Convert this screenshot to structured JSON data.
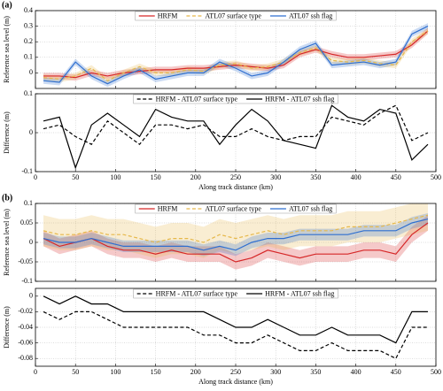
{
  "chart_data": [
    {
      "type": "line",
      "panel_label": "(a)",
      "ylabel": "Reference sea level (m)",
      "x": [
        10,
        30,
        50,
        70,
        90,
        110,
        130,
        150,
        170,
        190,
        210,
        230,
        250,
        270,
        290,
        310,
        330,
        350,
        370,
        390,
        410,
        430,
        450,
        470,
        490
      ],
      "xlim": [
        0,
        500
      ],
      "xticks": [
        0,
        50,
        100,
        150,
        200,
        250,
        300,
        350,
        400,
        450,
        500
      ],
      "ylim": [
        -0.1,
        0.4
      ],
      "yticks": [
        0,
        0.1,
        0.2,
        0.3,
        0.4
      ],
      "grid": true,
      "legend": "top",
      "series": [
        {
          "name": "HRFM",
          "color": "#d62728",
          "dash": "solid",
          "band": 0.02,
          "values": [
            -0.02,
            -0.02,
            -0.03,
            0.0,
            -0.02,
            0.0,
            0.01,
            0.02,
            0.02,
            0.03,
            0.03,
            0.04,
            0.05,
            0.04,
            0.03,
            0.05,
            0.12,
            0.15,
            0.12,
            0.1,
            0.1,
            0.11,
            0.12,
            0.18,
            0.27
          ]
        },
        {
          "name": "ATL07 surface type",
          "color": "#e6b84a",
          "dash": "dashed",
          "band": 0.02,
          "values": [
            -0.03,
            -0.04,
            -0.02,
            0.03,
            -0.05,
            0.0,
            0.04,
            0.0,
            0.0,
            0.02,
            0.01,
            0.05,
            0.06,
            0.03,
            0.04,
            0.07,
            0.13,
            0.16,
            0.08,
            0.07,
            0.08,
            0.06,
            0.05,
            0.2,
            0.27
          ]
        },
        {
          "name": "ATL07 ssh flag",
          "color": "#2f6fd0",
          "dash": "solid",
          "band": 0.02,
          "values": [
            -0.05,
            -0.06,
            0.07,
            -0.02,
            -0.07,
            -0.02,
            0.02,
            -0.04,
            -0.02,
            0.0,
            0.0,
            0.07,
            0.03,
            -0.02,
            0.0,
            0.07,
            0.15,
            0.19,
            0.05,
            0.06,
            0.07,
            0.05,
            0.07,
            0.25,
            0.3
          ]
        }
      ]
    },
    {
      "type": "line",
      "ylabel": "Difference (m)",
      "xlabel": "Along track distance (km)",
      "x": [
        10,
        30,
        50,
        70,
        90,
        110,
        130,
        150,
        170,
        190,
        210,
        230,
        250,
        270,
        290,
        310,
        330,
        350,
        370,
        390,
        410,
        430,
        450,
        470,
        490
      ],
      "xlim": [
        0,
        500
      ],
      "xticks": [
        0,
        50,
        100,
        150,
        200,
        250,
        300,
        350,
        400,
        450,
        500
      ],
      "ylim": [
        -0.1,
        0.1
      ],
      "yticks": [
        -0.1,
        0,
        0.1
      ],
      "grid": true,
      "legend": "top",
      "series": [
        {
          "name": "HRFM - ATL07 surface type",
          "color": "#000000",
          "dash": "dashed",
          "values": [
            0.01,
            0.02,
            -0.01,
            -0.03,
            0.03,
            0.0,
            -0.03,
            0.02,
            0.02,
            0.01,
            0.02,
            -0.01,
            -0.01,
            0.01,
            -0.01,
            -0.02,
            -0.01,
            -0.01,
            0.04,
            0.03,
            0.02,
            0.05,
            0.07,
            -0.02,
            0.0
          ]
        },
        {
          "name": "HRFM - ATL07 ssh flag",
          "color": "#000000",
          "dash": "solid",
          "values": [
            0.03,
            0.04,
            -0.09,
            0.02,
            0.05,
            0.02,
            -0.01,
            0.06,
            0.04,
            0.03,
            0.03,
            -0.03,
            0.02,
            0.06,
            0.03,
            -0.02,
            -0.03,
            -0.04,
            0.07,
            0.04,
            0.03,
            0.06,
            0.05,
            -0.07,
            -0.03
          ]
        }
      ]
    },
    {
      "type": "line",
      "panel_label": "(b)",
      "ylabel": "Reference sea level (m)",
      "x": [
        10,
        30,
        50,
        70,
        90,
        110,
        130,
        150,
        170,
        190,
        210,
        230,
        250,
        270,
        290,
        310,
        330,
        350,
        370,
        390,
        410,
        430,
        450,
        470,
        490
      ],
      "xlim": [
        0,
        500
      ],
      "xticks": [
        0,
        50,
        100,
        150,
        200,
        250,
        300,
        350,
        400,
        450,
        500
      ],
      "ylim": [
        -0.1,
        0.1
      ],
      "yticks": [
        -0.1,
        -0.05,
        0,
        0.05,
        0.1
      ],
      "grid": true,
      "legend": "top",
      "series": [
        {
          "name": "HRFM",
          "color": "#d62728",
          "dash": "solid",
          "band": 0.02,
          "values": [
            0.01,
            -0.01,
            0.0,
            0.01,
            -0.01,
            -0.02,
            -0.02,
            -0.03,
            -0.02,
            -0.03,
            -0.03,
            -0.03,
            -0.05,
            -0.04,
            -0.02,
            -0.03,
            -0.04,
            -0.03,
            -0.03,
            -0.03,
            -0.02,
            -0.02,
            -0.03,
            0.02,
            0.05
          ]
        },
        {
          "name": "ATL07 surface type",
          "color": "#e6b84a",
          "dash": "dashed",
          "band": 0.04,
          "values": [
            0.03,
            0.02,
            0.02,
            0.03,
            0.02,
            0.02,
            0.01,
            0.0,
            0.01,
            0.01,
            0.0,
            0.02,
            0.01,
            0.02,
            0.03,
            0.02,
            0.03,
            0.03,
            0.03,
            0.04,
            0.04,
            0.04,
            0.05,
            0.06,
            0.07
          ]
        },
        {
          "name": "ATL07 ssh flag",
          "color": "#2f6fd0",
          "dash": "solid",
          "band": 0.015,
          "values": [
            0.01,
            0.0,
            0.0,
            0.01,
            0.0,
            -0.01,
            -0.01,
            -0.01,
            -0.01,
            -0.01,
            -0.02,
            -0.01,
            -0.02,
            0.0,
            0.01,
            0.01,
            0.02,
            0.02,
            0.02,
            0.02,
            0.03,
            0.03,
            0.03,
            0.05,
            0.06
          ]
        }
      ]
    },
    {
      "type": "line",
      "ylabel": "Difference (m)",
      "xlabel": "Along track distance (km)",
      "x": [
        10,
        30,
        50,
        70,
        90,
        110,
        130,
        150,
        170,
        190,
        210,
        230,
        250,
        270,
        290,
        310,
        330,
        350,
        370,
        390,
        410,
        430,
        450,
        470,
        490
      ],
      "xlim": [
        0,
        500
      ],
      "xticks": [
        0,
        50,
        100,
        150,
        200,
        250,
        300,
        350,
        400,
        450,
        500
      ],
      "ylim": [
        -0.09,
        0.01
      ],
      "yticks": [
        -0.08,
        -0.06,
        -0.04,
        -0.02,
        0
      ],
      "grid": true,
      "legend": "top",
      "series": [
        {
          "name": "HRFM - ATL07 surface type",
          "color": "#000000",
          "dash": "dashed",
          "values": [
            -0.02,
            -0.03,
            -0.02,
            -0.02,
            -0.03,
            -0.04,
            -0.04,
            -0.04,
            -0.04,
            -0.04,
            -0.05,
            -0.05,
            -0.06,
            -0.06,
            -0.05,
            -0.06,
            -0.07,
            -0.07,
            -0.06,
            -0.07,
            -0.07,
            -0.07,
            -0.08,
            -0.04,
            -0.04
          ]
        },
        {
          "name": "HRFM - ATL07 ssh flag",
          "color": "#000000",
          "dash": "solid",
          "values": [
            0.0,
            -0.01,
            0.0,
            -0.01,
            -0.01,
            -0.02,
            -0.02,
            -0.02,
            -0.02,
            -0.02,
            -0.02,
            -0.03,
            -0.04,
            -0.04,
            -0.03,
            -0.04,
            -0.05,
            -0.05,
            -0.04,
            -0.05,
            -0.05,
            -0.05,
            -0.06,
            -0.02,
            -0.02
          ]
        }
      ]
    }
  ]
}
